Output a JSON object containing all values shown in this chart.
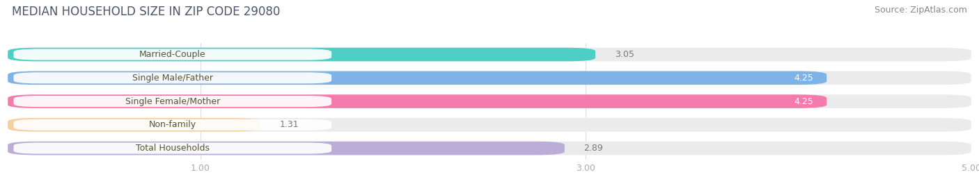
{
  "title": "MEDIAN HOUSEHOLD SIZE IN ZIP CODE 29080",
  "source": "Source: ZipAtlas.com",
  "categories": [
    "Married-Couple",
    "Single Male/Father",
    "Single Female/Mother",
    "Non-family",
    "Total Households"
  ],
  "values": [
    3.05,
    4.25,
    4.25,
    1.31,
    2.89
  ],
  "bar_colors": [
    "#4ecfc6",
    "#7fb3e8",
    "#f47bae",
    "#f7cfa0",
    "#bbadd8"
  ],
  "xlim": [
    0,
    5.0
  ],
  "xticks": [
    1.0,
    3.0,
    5.0
  ],
  "background_color": "#ffffff",
  "bar_bg_color": "#ebebeb",
  "label_bg_color": "#ffffff",
  "label_text_color": "#555533",
  "title_color": "#4a5568",
  "source_color": "#888888",
  "tick_color": "#aaaaaa",
  "grid_color": "#dddddd",
  "title_fontsize": 12,
  "source_fontsize": 9,
  "label_fontsize": 9,
  "value_fontsize": 9,
  "tick_fontsize": 9
}
